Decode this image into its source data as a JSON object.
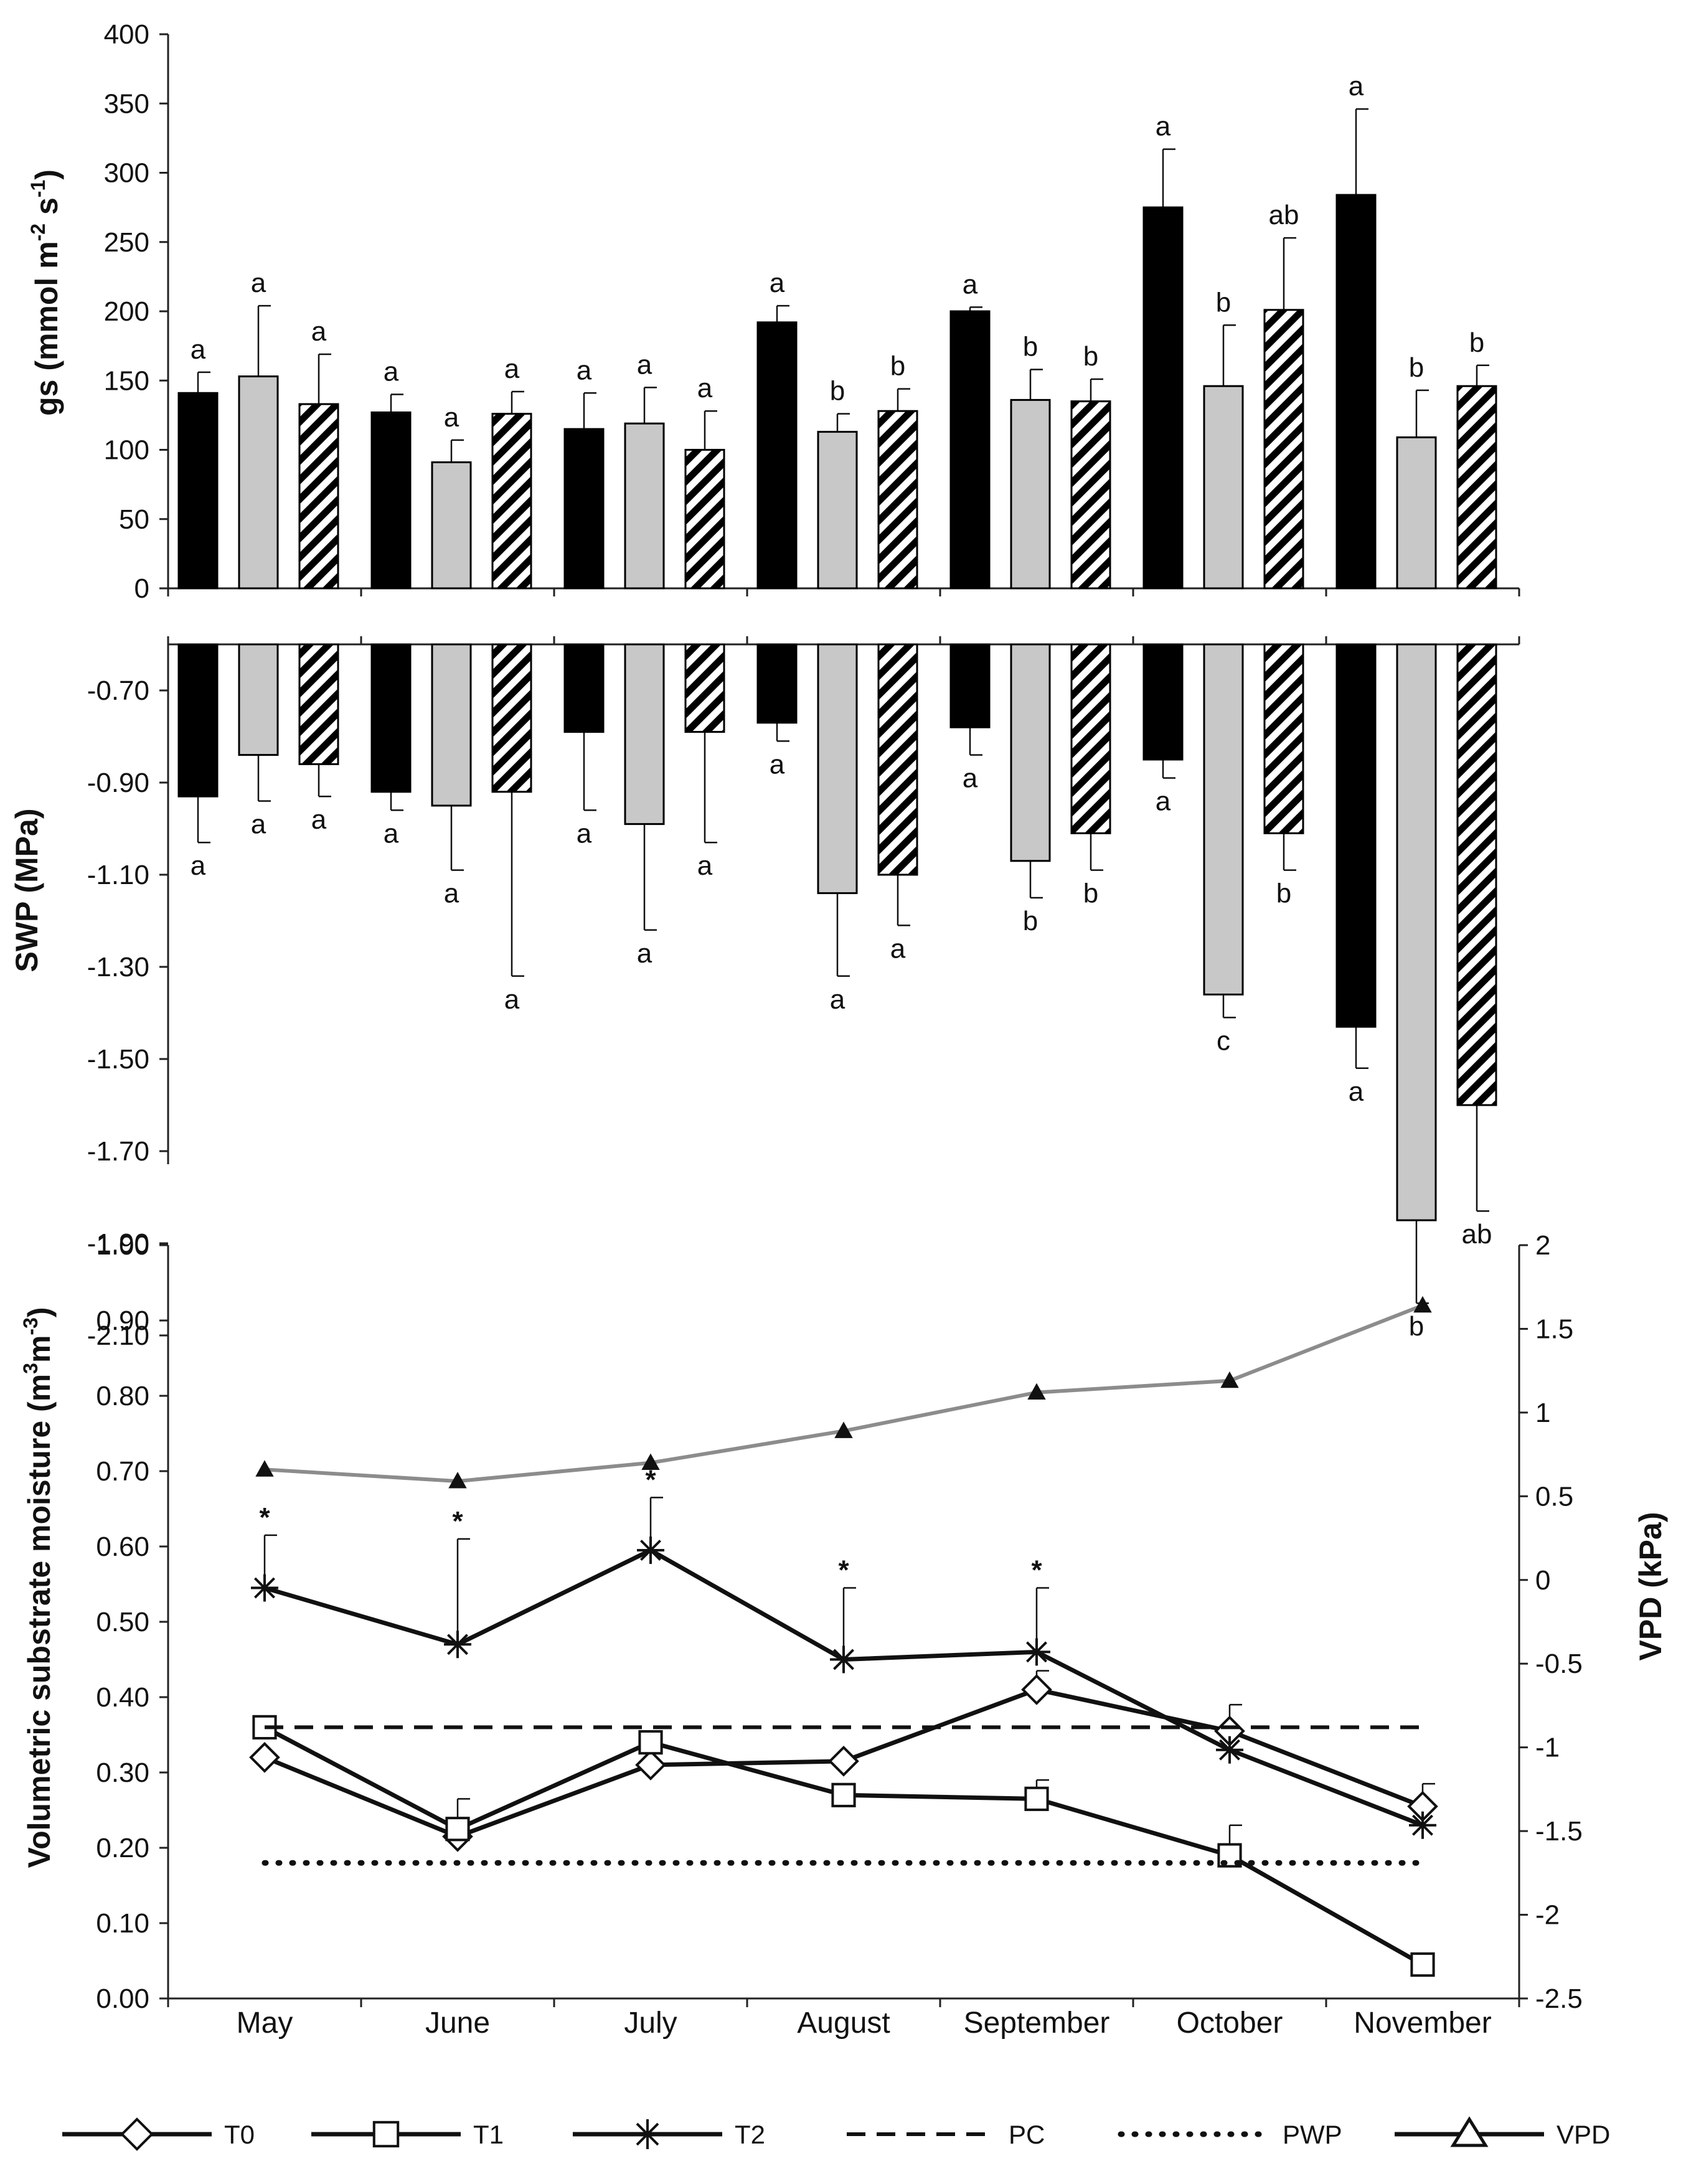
{
  "months": [
    "May",
    "June",
    "July",
    "August",
    "September",
    "October",
    "November"
  ],
  "chart_data": [
    {
      "id": "gs",
      "type": "bar",
      "ylabel": "gs (mmol m-2 s-1)",
      "ylabel_parts": {
        "a": "gs (mmol m",
        "b": "-2",
        "c": " s",
        "d": "-1",
        "e": ")"
      },
      "ylim": [
        0,
        400
      ],
      "yticks": [
        "0",
        "50",
        "100",
        "150",
        "200",
        "250",
        "300",
        "350",
        "400"
      ],
      "categories": [
        "May",
        "June",
        "July",
        "August",
        "September",
        "October",
        "November"
      ],
      "series": [
        {
          "name": "T0",
          "values": [
            141,
            127,
            115,
            192,
            200,
            275,
            284
          ],
          "errors": [
            15,
            13,
            26,
            12,
            3,
            42,
            62
          ],
          "letters": [
            "a",
            "a",
            "a",
            "a",
            "a",
            "a",
            "a"
          ]
        },
        {
          "name": "T1",
          "values": [
            153,
            91,
            119,
            113,
            136,
            146,
            109
          ],
          "errors": [
            51,
            16,
            26,
            13,
            22,
            44,
            34
          ],
          "letters": [
            "a",
            "a",
            "a",
            "b",
            "b",
            "b",
            "b"
          ]
        },
        {
          "name": "T2",
          "values": [
            133,
            126,
            100,
            128,
            135,
            201,
            146
          ],
          "errors": [
            36,
            16,
            28,
            16,
            16,
            52,
            15
          ],
          "letters": [
            "a",
            "a",
            "a",
            "b",
            "b",
            "ab",
            "b"
          ]
        }
      ]
    },
    {
      "id": "swp",
      "type": "bar",
      "ylabel": "SWP (MPa)",
      "ylim": [
        -2.1,
        -0.6
      ],
      "yticks": [
        "-0.70",
        "-0.90",
        "-1.10",
        "-1.30",
        "-1.50",
        "-1.70",
        "-1.90",
        "-2.10"
      ],
      "categories": [
        "May",
        "June",
        "July",
        "August",
        "September",
        "October",
        "November"
      ],
      "series": [
        {
          "name": "T0",
          "values": [
            -0.93,
            -0.92,
            -0.79,
            -0.77,
            -0.78,
            -0.85,
            -1.43
          ],
          "errors": [
            0.1,
            0.04,
            0.17,
            0.04,
            0.06,
            0.04,
            0.09
          ],
          "letters": [
            "a",
            "a",
            "a",
            "a",
            "a",
            "a",
            "a"
          ]
        },
        {
          "name": "T1",
          "values": [
            -0.84,
            -0.95,
            -0.99,
            -1.14,
            -1.07,
            -1.36,
            -1.85
          ],
          "errors": [
            0.1,
            0.14,
            0.23,
            0.18,
            0.08,
            0.05,
            0.18
          ],
          "letters": [
            "a",
            "a",
            "a",
            "a",
            "b",
            "c",
            "b"
          ]
        },
        {
          "name": "T2",
          "values": [
            -0.86,
            -0.92,
            -0.79,
            -1.1,
            -1.01,
            -1.01,
            -1.6
          ],
          "errors": [
            0.07,
            0.4,
            0.24,
            0.11,
            0.08,
            0.08,
            0.23
          ],
          "letters": [
            "a",
            "a",
            "a",
            "a",
            "b",
            "b",
            "ab"
          ]
        }
      ]
    },
    {
      "id": "moisture",
      "type": "line",
      "ylabel": "Volumetric substrate moisture (m3m-3)",
      "ylabel_parts": {
        "a": "Volumetric substrate moisture (m",
        "b": "3",
        "c": "m",
        "d": "-3",
        "e": ")"
      },
      "ylabel_right": "VPD (kPa)",
      "ylim": [
        0,
        1
      ],
      "ylim_right": [
        -2.5,
        2
      ],
      "yticks": [
        "0.00",
        "0.10",
        "0.20",
        "0.30",
        "0.40",
        "0.50",
        "0.60",
        "0.70",
        "0.80",
        "0.90",
        "1.00"
      ],
      "yticks_right": [
        "-2.5",
        "-2",
        "-1.5",
        "-1",
        "-0.5",
        "0",
        "0.5",
        "1",
        "1.5",
        "2"
      ],
      "categories": [
        "May",
        "June",
        "July",
        "August",
        "September",
        "October",
        "November"
      ],
      "series": [
        {
          "name": "T0",
          "marker": "diamond",
          "values": [
            0.32,
            0.215,
            0.31,
            0.315,
            0.41,
            0.355,
            0.255
          ],
          "errors": [
            0,
            0,
            0,
            0,
            0.025,
            0.035,
            0.03
          ]
        },
        {
          "name": "T1",
          "marker": "square",
          "values": [
            0.36,
            0.225,
            0.34,
            0.27,
            0.265,
            0.19,
            0.045
          ],
          "errors": [
            0,
            0.04,
            0,
            0,
            0.025,
            0.04,
            0
          ]
        },
        {
          "name": "T2",
          "marker": "star",
          "values": [
            0.545,
            0.47,
            0.595,
            0.45,
            0.46,
            0.33,
            0.23
          ],
          "errors": [
            0.07,
            0.14,
            0.07,
            0.095,
            0.085,
            0,
            0
          ]
        },
        {
          "name": "PC",
          "style": "dashed",
          "values": [
            0.36,
            0.36,
            0.36,
            0.36,
            0.36,
            0.36,
            0.36
          ]
        },
        {
          "name": "PWP",
          "style": "dotted",
          "values": [
            0.18,
            0.18,
            0.18,
            0.18,
            0.18,
            0.18,
            0.18
          ]
        },
        {
          "name": "VPD",
          "marker": "triangle",
          "axis": "right",
          "values": [
            0.66,
            0.59,
            0.7,
            0.89,
            1.12,
            1.19,
            1.64
          ]
        }
      ],
      "asterisks": [
        "*",
        "*",
        "*",
        "*",
        "*",
        "",
        ""
      ]
    }
  ],
  "legend": [
    "T0",
    "T1",
    "T2",
    "PC",
    "PWP",
    "VPD"
  ],
  "colors": {
    "t0": "#000000",
    "t1": "#c8c8c8",
    "hatch": "#000000",
    "vpd": "#8c8c8c",
    "line": "#111111"
  }
}
